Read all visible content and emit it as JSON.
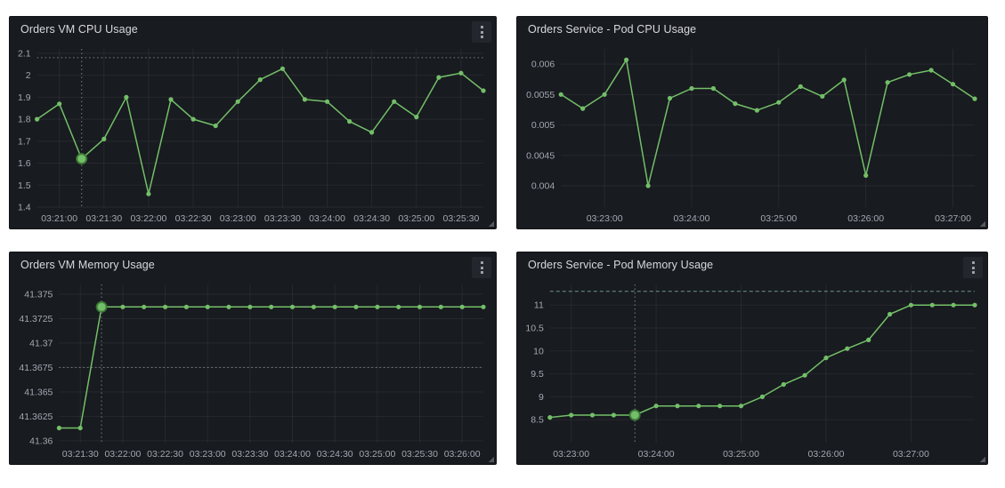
{
  "theme": {
    "page_background": "#ffffff",
    "panel_background": "#181b1f",
    "grid_color": "rgba(204,204,220,0.08)",
    "tick_text_color": "rgba(204,204,220,0.78)",
    "accent_green": "#73bf69"
  },
  "chart_data": [
    {
      "type": "line",
      "title": "Orders VM CPU Usage",
      "has_menu": true,
      "series_color": "#73bf69",
      "x": [
        "03:20:45",
        "03:21:00",
        "03:21:15",
        "03:21:30",
        "03:21:45",
        "03:22:00",
        "03:22:15",
        "03:22:30",
        "03:22:45",
        "03:23:00",
        "03:23:15",
        "03:23:30",
        "03:23:45",
        "03:24:00",
        "03:24:15",
        "03:24:30",
        "03:24:45",
        "03:25:00",
        "03:25:15",
        "03:25:30",
        "03:25:45"
      ],
      "values": [
        1.8,
        1.87,
        1.62,
        1.71,
        1.9,
        1.46,
        1.89,
        1.8,
        1.77,
        1.88,
        1.98,
        2.03,
        1.89,
        1.88,
        1.79,
        1.74,
        1.88,
        1.81,
        1.99,
        2.01,
        1.93
      ],
      "ylim": [
        1.4,
        2.12
      ],
      "ytick_values": [
        2.1,
        2,
        1.9,
        1.8,
        1.7,
        1.6,
        1.5,
        1.4
      ],
      "ytick_labels": [
        "2.1",
        "2",
        "1.9",
        "1.8",
        "1.7",
        "1.6",
        "1.5",
        "1.4"
      ],
      "xtick_labels": [
        "03:21:00",
        "03:21:30",
        "03:22:00",
        "03:22:30",
        "03:23:00",
        "03:23:30",
        "03:24:00",
        "03:24:30",
        "03:25:00",
        "03:25:30"
      ],
      "xtick_indices": [
        1,
        3,
        5,
        7,
        9,
        11,
        13,
        15,
        17,
        19
      ],
      "threshold": {
        "value": 2.08,
        "color": "#7b8490",
        "dash": "1.5,3"
      },
      "annotation": {
        "index": 2,
        "value": 1.62,
        "color": "#767e8b",
        "dash": "1.5,3"
      },
      "grid": true,
      "legend_position": "none"
    },
    {
      "type": "line",
      "title": "Orders Service - Pod CPU Usage",
      "has_menu": false,
      "series_color": "#73bf69",
      "x": [
        "03:22:30",
        "03:22:45",
        "03:23:00",
        "03:23:15",
        "03:23:30",
        "03:23:45",
        "03:24:00",
        "03:24:15",
        "03:24:30",
        "03:24:45",
        "03:25:00",
        "03:25:15",
        "03:25:30",
        "03:25:45",
        "03:26:00",
        "03:26:15",
        "03:26:30",
        "03:26:45",
        "03:27:00",
        "03:27:15"
      ],
      "values": [
        0.0055,
        0.00527,
        0.0055,
        0.00607,
        0.004,
        0.00544,
        0.0056,
        0.0056,
        0.00535,
        0.00524,
        0.00537,
        0.00563,
        0.00547,
        0.00574,
        0.00417,
        0.0057,
        0.00583,
        0.0059,
        0.00567,
        0.00543
      ],
      "ylim": [
        0.00365,
        0.00625
      ],
      "ytick_values": [
        0.006,
        0.0055,
        0.005,
        0.0045,
        0.004
      ],
      "ytick_labels": [
        "0.006",
        "0.0055",
        "0.005",
        "0.0045",
        "0.004"
      ],
      "xtick_labels": [
        "03:23:00",
        "03:24:00",
        "03:25:00",
        "03:26:00",
        "03:27:00"
      ],
      "xtick_indices": [
        2,
        6,
        10,
        14,
        18
      ],
      "threshold": null,
      "annotation": null,
      "grid": true,
      "legend_position": "none"
    },
    {
      "type": "line",
      "title": "Orders VM Memory Usage",
      "has_menu": true,
      "series_color": "#73bf69",
      "x": [
        "03:21:15",
        "03:21:30",
        "03:21:45",
        "03:22:00",
        "03:22:15",
        "03:22:30",
        "03:22:45",
        "03:23:00",
        "03:23:15",
        "03:23:30",
        "03:23:45",
        "03:24:00",
        "03:24:15",
        "03:24:30",
        "03:24:45",
        "03:25:00",
        "03:25:15",
        "03:25:30",
        "03:25:45",
        "03:26:00",
        "03:26:15"
      ],
      "values": [
        41.3613,
        41.3613,
        41.3737,
        41.3737,
        41.3737,
        41.3737,
        41.3737,
        41.3737,
        41.3737,
        41.3737,
        41.3737,
        41.3737,
        41.3737,
        41.3737,
        41.3737,
        41.3737,
        41.3737,
        41.3737,
        41.3737,
        41.3737,
        41.3737
      ],
      "ylim": [
        41.3598,
        41.376
      ],
      "ytick_values": [
        41.375,
        41.3725,
        41.37,
        41.3675,
        41.365,
        41.3625,
        41.36
      ],
      "ytick_labels": [
        "41.375",
        "41.3725",
        "41.37",
        "41.3675",
        "41.365",
        "41.3625",
        "41.36"
      ],
      "xtick_labels": [
        "03:21:30",
        "03:22:00",
        "03:22:30",
        "03:23:00",
        "03:23:30",
        "03:24:00",
        "03:24:30",
        "03:25:00",
        "03:25:30",
        "03:26:00"
      ],
      "xtick_indices": [
        1,
        3,
        5,
        7,
        9,
        11,
        13,
        15,
        17,
        19
      ],
      "threshold": {
        "value": 41.3675,
        "color": "#7b8490",
        "dash": "1.5,3"
      },
      "annotation": {
        "index": 2,
        "value": 41.3737,
        "color": "#767e8b",
        "dash": "1.5,3"
      },
      "grid": true,
      "legend_position": "none"
    },
    {
      "type": "line",
      "title": "Orders Service - Pod Memory Usage",
      "has_menu": true,
      "series_color": "#73bf69",
      "x": [
        "03:22:45",
        "03:23:00",
        "03:23:15",
        "03:23:30",
        "03:23:45",
        "03:24:00",
        "03:24:15",
        "03:24:30",
        "03:24:45",
        "03:25:00",
        "03:25:15",
        "03:25:30",
        "03:25:45",
        "03:26:00",
        "03:26:15",
        "03:26:30",
        "03:26:45",
        "03:27:00",
        "03:27:15",
        "03:27:30",
        "03:27:45"
      ],
      "values": [
        8.55,
        8.6,
        8.6,
        8.6,
        8.6,
        8.8,
        8.8,
        8.8,
        8.8,
        8.8,
        9.0,
        9.27,
        9.47,
        9.85,
        10.05,
        10.24,
        10.8,
        11.0,
        11.0,
        11.0,
        11.0
      ],
      "ylim": [
        8.0,
        11.45
      ],
      "ytick_values": [
        11,
        10.5,
        10,
        9.5,
        9,
        8.5
      ],
      "ytick_labels": [
        "11",
        "10.5",
        "10",
        "9.5",
        "9",
        "8.5"
      ],
      "xtick_labels": [
        "03:23:00",
        "03:24:00",
        "03:25:00",
        "03:26:00",
        "03:27:00"
      ],
      "xtick_indices": [
        1,
        5,
        9,
        13,
        17
      ],
      "threshold": {
        "value": 11.3,
        "color": "#6f968e",
        "dash": "4,3"
      },
      "annotation": {
        "index": 4,
        "value": 8.6,
        "color": "#68908a",
        "dash": "1.5,3"
      },
      "grid": true,
      "legend_position": "none"
    }
  ]
}
